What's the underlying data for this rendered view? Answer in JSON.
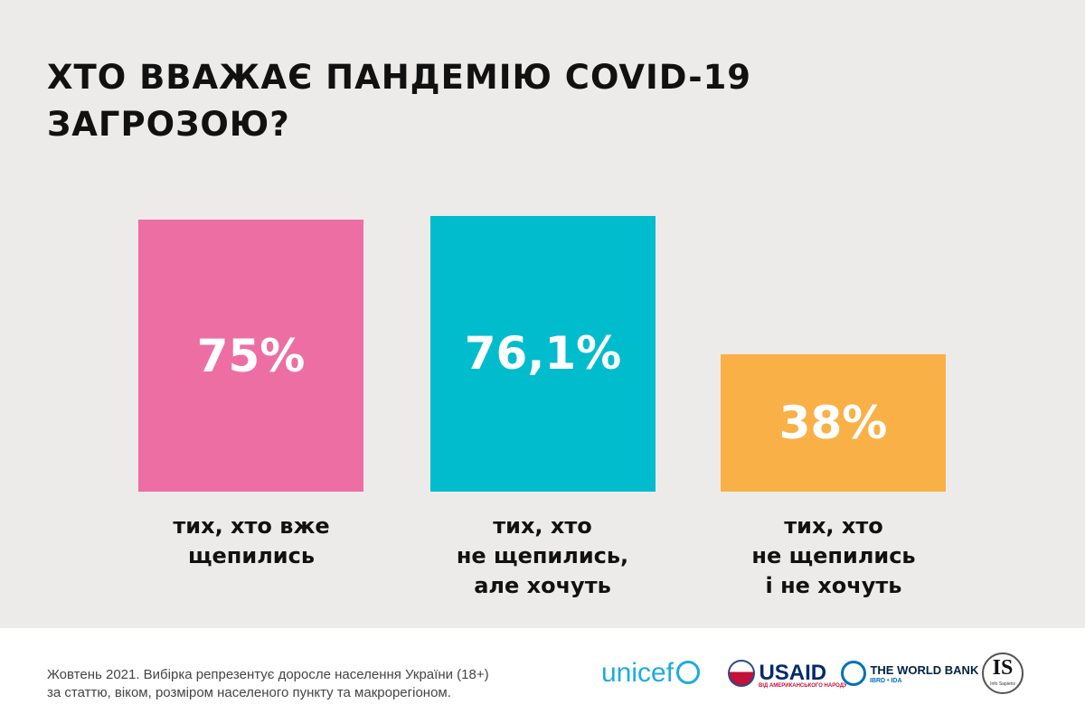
{
  "chart_data": {
    "type": "bar",
    "title": "ХТО ВВАЖАЄ ПАНДЕМІЮ COVID-19 ЗАГРОЗОЮ?",
    "categories": [
      "тих, хто вже\nщепились",
      "тих, хто\nне щепились,\nале хочуть",
      "тих, хто\nне щепились\nі не хочуть"
    ],
    "values": [
      75,
      76.1,
      38
    ],
    "data_labels": [
      "75%",
      "76,1%",
      "38%"
    ],
    "colors": [
      "#ed6ea3",
      "#00bccc",
      "#f9b046"
    ],
    "ylim": [
      0,
      100
    ],
    "grid": false
  },
  "footer": {
    "note_line1": "Жовтень 2021. Вибірка репрезентує доросле населення України (18+)",
    "note_line2": "за статтю, віком, розміром населеного пункту та макрорегіоном.",
    "logos": {
      "unicef": "unicef",
      "usaid": "USAID",
      "usaid_sub": "ВІД АМЕРИКАНСЬКОГО НАРОДУ",
      "worldbank": "THE WORLD BANK",
      "worldbank_sub": "IBRD • IDA",
      "infosapiens": "IS",
      "infosapiens_sub": "Info Sapiens"
    }
  }
}
